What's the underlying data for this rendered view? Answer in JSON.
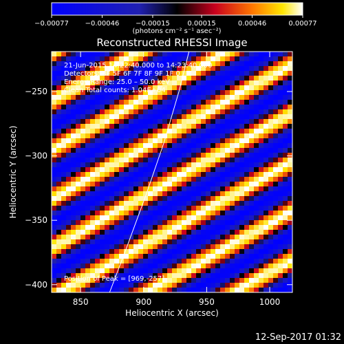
{
  "chart_data": {
    "type": "heatmap",
    "title": "Reconstructed RHESSI Image",
    "xlabel": "Heliocentric X (arcsec)",
    "ylabel": "Heliocentric Y (arcsec)",
    "xlim": [
      827,
      1018
    ],
    "ylim": [
      -406,
      -219
    ],
    "x_ticks": [
      850,
      900,
      950,
      1000
    ],
    "y_ticks": [
      -250,
      -300,
      -350,
      -400
    ],
    "x_tick_labels": [
      "850",
      "900",
      "950",
      "1000"
    ],
    "y_tick_labels": [
      "−250",
      "−300",
      "−350",
      "−400"
    ],
    "colorbar": {
      "range": [
        -0.00077,
        0.00077
      ],
      "ticks": [
        -0.00077,
        -0.00046,
        -0.00015,
        0.00015,
        0.00046,
        0.00077
      ],
      "tick_labels": [
        "−0.00077",
        "−0.00046",
        "−0.00015",
        "0.00015",
        "0.00046",
        "0.00077"
      ],
      "units_label": "(photons cm⁻² s⁻¹ asec⁻²)"
    },
    "stripe_pattern": {
      "orientation": "diagonal, rising to the right",
      "period_arcsec_along_y": 38,
      "amplitude": 0.00077
    },
    "limb_curve": [
      [
        873,
        -406
      ],
      [
        887,
        -370
      ],
      [
        902,
        -330
      ],
      [
        916,
        -290
      ],
      [
        928,
        -250
      ],
      [
        936,
        -219
      ]
    ],
    "annotations": [
      "21-Jun-2015 14:22:40.000 to 14:23:40.000",
      "Detectors: 3F 5F 6F 7F 8F 9F 1F 0",
      "Energy Range: 25.0 – 50.0 keV",
      "Clean     Total counts: 1.04E+04",
      "Position of Peak = [969,-257]"
    ]
  },
  "footer": {
    "timestamp": "12-Sep-2017 01:32"
  }
}
